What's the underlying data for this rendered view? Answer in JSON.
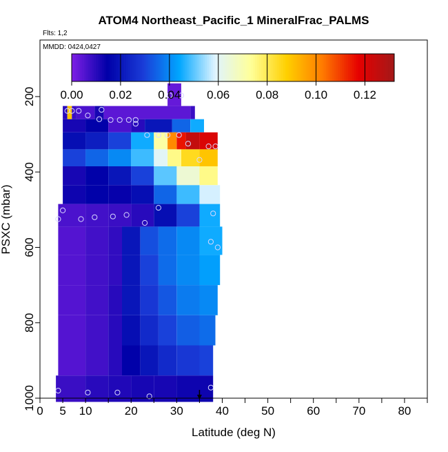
{
  "chart_data": {
    "type": "heatmap",
    "title": "ATOM4 Northeast_Pacific_1 MineralFrac_PALMS",
    "flights_label": "Flts: 1,2",
    "dates_label": "MMDD: 0424,0427",
    "xlabel": "Latitude (deg N)",
    "ylabel": "PSXC (mbar)",
    "xlim": [
      0,
      85
    ],
    "ylim": [
      1000,
      50
    ],
    "x_ticks": [
      0,
      5,
      10,
      20,
      30,
      40,
      50,
      60,
      70,
      80
    ],
    "x_tick_labels": [
      "0",
      "5",
      "10",
      "20",
      "30",
      "40",
      "50",
      "60",
      "70",
      "80"
    ],
    "x_minor_ticks": [
      15,
      25,
      35,
      45,
      55,
      65,
      75,
      85
    ],
    "y_ticks": [
      200,
      400,
      600,
      800,
      1000
    ],
    "y_tick_labels": [
      "200",
      "400",
      "600",
      "800",
      "1000"
    ],
    "colorbar": {
      "min": 0.0,
      "max": 0.132,
      "ticks": [
        0.0,
        0.02,
        0.04,
        0.06,
        0.08,
        0.1,
        0.12
      ],
      "tick_labels": [
        "0.00",
        "0.02",
        "0.04",
        "0.06",
        "0.08",
        "0.10",
        "0.12"
      ],
      "colors": [
        "#7f1fe6",
        "#0000a8",
        "#1a3cd8",
        "#00a6ff",
        "#dff4ff",
        "#ffff99",
        "#ffd000",
        "#ff7a00",
        "#e60000",
        "#a31919"
      ]
    },
    "grid": false,
    "rows": [
      {
        "p_top": 165,
        "p_bot": 225,
        "cells": [
          [
            28,
            31,
            0.003
          ]
        ]
      },
      {
        "p_top": 225,
        "p_bot": 260,
        "cells": [
          [
            5,
            6,
            0.01
          ],
          [
            6,
            7,
            0.09
          ],
          [
            7,
            8,
            0.008
          ],
          [
            8,
            12,
            0.006
          ],
          [
            12,
            14,
            0.012
          ],
          [
            14,
            33,
            0.004
          ],
          [
            33,
            34,
            0.008
          ]
        ]
      },
      {
        "p_top": 260,
        "p_bot": 295,
        "cells": [
          [
            5,
            10,
            0.012
          ],
          [
            10,
            15,
            0.015
          ],
          [
            15,
            20,
            0.006
          ],
          [
            20,
            23,
            0.01
          ],
          [
            23,
            29,
            0.02
          ],
          [
            29,
            33,
            0.035
          ],
          [
            33,
            36,
            0.045
          ]
        ]
      },
      {
        "p_top": 295,
        "p_bot": 340,
        "cells": [
          [
            5,
            10,
            0.018
          ],
          [
            10,
            15,
            0.022
          ],
          [
            15,
            20,
            0.03
          ],
          [
            20,
            25,
            0.045
          ],
          [
            25,
            28,
            0.072
          ],
          [
            28,
            30,
            0.1
          ],
          [
            30,
            32,
            0.115
          ],
          [
            32,
            35,
            0.125
          ],
          [
            35,
            39,
            0.12
          ]
        ]
      },
      {
        "p_top": 340,
        "p_bot": 385,
        "cells": [
          [
            5,
            10,
            0.03
          ],
          [
            10,
            15,
            0.035
          ],
          [
            15,
            20,
            0.04
          ],
          [
            20,
            25,
            0.048
          ],
          [
            25,
            28,
            0.06
          ],
          [
            28,
            31,
            0.075
          ],
          [
            31,
            35,
            0.085
          ],
          [
            35,
            39,
            0.09
          ]
        ]
      },
      {
        "p_top": 385,
        "p_bot": 435,
        "cells": [
          [
            5,
            10,
            0.012
          ],
          [
            10,
            15,
            0.015
          ],
          [
            15,
            20,
            0.02
          ],
          [
            20,
            25,
            0.03
          ],
          [
            25,
            30,
            0.05
          ],
          [
            30,
            35,
            0.065
          ],
          [
            35,
            39,
            0.075
          ]
        ]
      },
      {
        "p_top": 435,
        "p_bot": 485,
        "cells": [
          [
            5,
            10,
            0.013
          ],
          [
            10,
            15,
            0.015
          ],
          [
            15,
            20,
            0.014
          ],
          [
            20,
            25,
            0.018
          ],
          [
            25,
            30,
            0.035
          ],
          [
            30,
            35,
            0.048
          ],
          [
            35,
            39.5,
            0.058
          ]
        ]
      },
      {
        "p_top": 485,
        "p_bot": 545,
        "cells": [
          [
            4,
            10,
            0.006
          ],
          [
            10,
            15,
            0.007
          ],
          [
            15,
            20,
            0.008
          ],
          [
            20,
            25,
            0.01
          ],
          [
            25,
            30,
            0.018
          ],
          [
            30,
            35,
            0.03
          ],
          [
            35,
            39.5,
            0.045
          ]
        ]
      },
      {
        "p_top": 545,
        "p_bot": 620,
        "cells": [
          [
            4,
            10,
            0.005
          ],
          [
            10,
            15,
            0.007
          ],
          [
            15,
            18,
            0.009
          ],
          [
            18,
            22,
            0.02
          ],
          [
            22,
            26,
            0.032
          ],
          [
            26,
            30,
            0.036
          ],
          [
            30,
            35,
            0.04
          ],
          [
            35,
            40,
            0.045
          ]
        ]
      },
      {
        "p_top": 620,
        "p_bot": 700,
        "cells": [
          [
            4,
            10,
            0.005
          ],
          [
            10,
            15,
            0.007
          ],
          [
            15,
            18,
            0.009
          ],
          [
            18,
            22,
            0.02
          ],
          [
            22,
            26,
            0.03
          ],
          [
            26,
            30,
            0.036
          ],
          [
            30,
            35,
            0.04
          ],
          [
            35,
            39.5,
            0.043
          ]
        ]
      },
      {
        "p_top": 700,
        "p_bot": 780,
        "cells": [
          [
            4,
            10,
            0.005
          ],
          [
            10,
            15,
            0.007
          ],
          [
            15,
            18,
            0.01
          ],
          [
            18,
            22,
            0.02
          ],
          [
            22,
            26,
            0.028
          ],
          [
            26,
            30,
            0.033
          ],
          [
            30,
            35,
            0.038
          ],
          [
            35,
            39,
            0.04
          ]
        ]
      },
      {
        "p_top": 780,
        "p_bot": 860,
        "cells": [
          [
            4,
            10,
            0.005
          ],
          [
            10,
            15,
            0.007
          ],
          [
            15,
            18,
            0.01
          ],
          [
            18,
            22,
            0.018
          ],
          [
            22,
            26,
            0.025
          ],
          [
            26,
            30,
            0.03
          ],
          [
            30,
            35,
            0.034
          ],
          [
            35,
            38.5,
            0.036
          ]
        ]
      },
      {
        "p_top": 860,
        "p_bot": 940,
        "cells": [
          [
            4,
            10,
            0.005
          ],
          [
            10,
            15,
            0.007
          ],
          [
            15,
            18,
            0.01
          ],
          [
            18,
            22,
            0.015
          ],
          [
            22,
            26,
            0.02
          ],
          [
            26,
            30,
            0.025
          ],
          [
            30,
            35,
            0.028
          ],
          [
            35,
            38,
            0.03
          ]
        ]
      },
      {
        "p_top": 940,
        "p_bot": 1010,
        "cells": [
          [
            3.5,
            10,
            0.008
          ],
          [
            10,
            15,
            0.01
          ],
          [
            15,
            20,
            0.011
          ],
          [
            20,
            25,
            0.012
          ],
          [
            25,
            30,
            0.012
          ],
          [
            30,
            35,
            0.013
          ],
          [
            35,
            38,
            0.013
          ]
        ]
      }
    ],
    "points": [
      [
        28.5,
        197
      ],
      [
        31,
        197
      ],
      [
        6,
        238
      ],
      [
        7,
        238
      ],
      [
        8.5,
        238
      ],
      [
        10.5,
        250
      ],
      [
        13.5,
        235
      ],
      [
        13,
        260
      ],
      [
        15.5,
        262
      ],
      [
        17.5,
        262
      ],
      [
        19.5,
        262
      ],
      [
        21,
        262
      ],
      [
        21,
        272
      ],
      [
        23.5,
        302
      ],
      [
        26,
        302
      ],
      [
        28,
        302
      ],
      [
        30.5,
        302
      ],
      [
        32.5,
        325
      ],
      [
        35,
        368
      ],
      [
        37,
        332
      ],
      [
        38.5,
        332
      ],
      [
        5,
        502
      ],
      [
        4,
        525
      ],
      [
        9,
        525
      ],
      [
        12,
        520
      ],
      [
        16,
        518
      ],
      [
        19,
        514
      ],
      [
        23,
        535
      ],
      [
        26,
        495
      ],
      [
        38,
        510
      ],
      [
        37.5,
        585
      ],
      [
        39,
        600
      ],
      [
        4,
        980
      ],
      [
        10.5,
        985
      ],
      [
        17,
        985
      ],
      [
        24,
        995
      ],
      [
        37.5,
        972
      ]
    ],
    "marker": {
      "x": 35,
      "p": 1000,
      "label": ""
    }
  }
}
